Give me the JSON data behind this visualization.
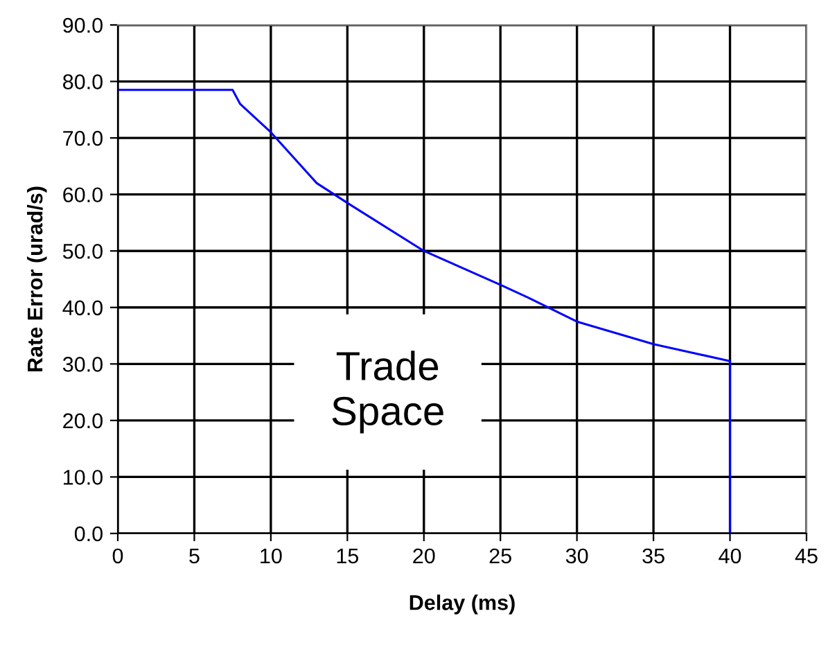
{
  "chart_data": {
    "type": "line",
    "xlabel": "Delay (ms)",
    "ylabel": "Rate Error (urad/s)",
    "series": [
      {
        "color": "#0000ff",
        "x": [
          0,
          7.5,
          8,
          10,
          13,
          15,
          20,
          25,
          27,
          30,
          35,
          40,
          40
        ],
        "values": [
          78.5,
          78.5,
          76,
          71,
          62,
          58.5,
          50,
          44,
          41.5,
          37.5,
          33.5,
          30.5,
          0
        ]
      }
    ],
    "xlim": [
      0,
      45
    ],
    "xticks": [
      0,
      5,
      10,
      15,
      20,
      25,
      30,
      35,
      40,
      45
    ],
    "ylim": [
      0,
      90
    ],
    "yticks": [
      {
        "value": 0,
        "label": "0.0"
      },
      {
        "value": 10,
        "label": "10.0"
      },
      {
        "value": 20,
        "label": "20.0"
      },
      {
        "value": 30,
        "label": "30.0"
      },
      {
        "value": 40,
        "label": "40.0"
      },
      {
        "value": 50,
        "label": "50.0"
      },
      {
        "value": 60,
        "label": "60.0"
      },
      {
        "value": 70,
        "label": "70.0"
      },
      {
        "value": 80,
        "label": "80.0"
      },
      {
        "value": 90,
        "label": "90.0"
      }
    ],
    "grid": true,
    "annotations": [
      "Trade\nSpace"
    ]
  }
}
